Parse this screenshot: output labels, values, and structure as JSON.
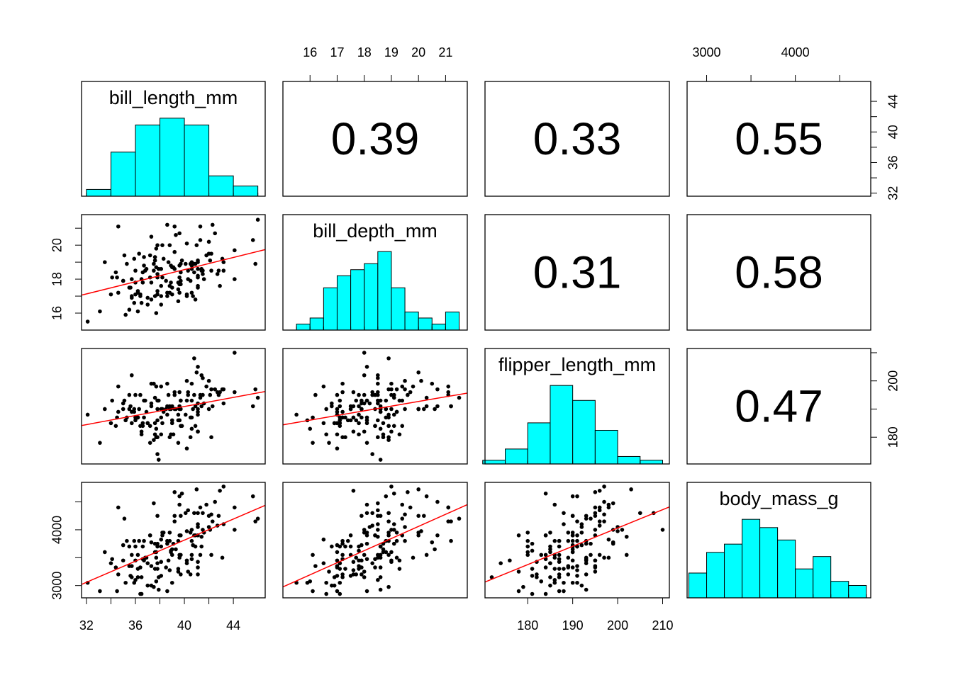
{
  "chart_data": {
    "type": "scatter-matrix",
    "point_color": "#000000",
    "fit_color": "#ff0000",
    "hist_color": "#00ffff",
    "variables": [
      {
        "name": "bill_length_mm",
        "lim": [
          31.6,
          46.6
        ],
        "xticks": [
          32,
          36,
          40,
          44
        ],
        "minor_xticks": [
          34,
          38,
          42
        ],
        "yticks": [
          32,
          36,
          40,
          44
        ],
        "minor_yticks": [
          34,
          38,
          42
        ],
        "bins": [
          32,
          34,
          36,
          38,
          40,
          42,
          44,
          46
        ],
        "counts": [
          2,
          13,
          21,
          23,
          21,
          6,
          3
        ]
      },
      {
        "name": "bill_depth_mm",
        "lim": [
          15.0,
          21.8
        ],
        "xticks": [
          16,
          17,
          18,
          19,
          20,
          21
        ],
        "yticks": [
          16,
          18,
          20
        ],
        "minor_yticks": [
          17,
          19,
          21
        ],
        "bins": [
          15.5,
          16,
          16.5,
          17,
          17.5,
          18,
          18.5,
          19,
          19.5,
          20,
          20.5,
          21,
          21.5
        ],
        "counts": [
          1,
          2,
          7,
          9,
          10,
          11,
          13,
          7,
          3,
          2,
          1,
          3
        ]
      },
      {
        "name": "flipper_length_mm",
        "lim": [
          170.5,
          211.5
        ],
        "xticks": [
          180,
          190,
          200,
          210
        ],
        "yticks": [
          180,
          200
        ],
        "minor_yticks": [
          190,
          210
        ],
        "bins": [
          170,
          175,
          180,
          185,
          190,
          195,
          200,
          205,
          210
        ],
        "counts": [
          1,
          4,
          11,
          21,
          17,
          9,
          2,
          1
        ]
      },
      {
        "name": "body_mass_g",
        "lim": [
          2780,
          4850
        ],
        "xticks": [
          3000,
          4000
        ],
        "minor_xticks": [
          3500,
          4500
        ],
        "yticks": [
          3000,
          4000
        ],
        "minor_yticks": [
          3500,
          4500
        ],
        "bins": [
          2800,
          3000,
          3200,
          3400,
          3600,
          3800,
          4000,
          4200,
          4400,
          4600,
          4800
        ],
        "counts": [
          6,
          11,
          13,
          19,
          17,
          14,
          7,
          10,
          4,
          3
        ]
      }
    ],
    "correlations": [
      0.39,
      0.33,
      0.55,
      0.31,
      0.58,
      0.47
    ],
    "rows": [
      [
        39.1,
        18.7,
        181,
        3750
      ],
      [
        39.5,
        17.4,
        186,
        3800
      ],
      [
        40.3,
        18.0,
        195,
        3250
      ],
      [
        36.7,
        19.3,
        193,
        3450
      ],
      [
        39.3,
        20.6,
        190,
        3650
      ],
      [
        38.9,
        17.8,
        181,
        3625
      ],
      [
        39.2,
        19.6,
        195,
        4675
      ],
      [
        34.1,
        18.1,
        193,
        3475
      ],
      [
        42.0,
        20.2,
        190,
        4250
      ],
      [
        37.8,
        17.1,
        186,
        3300
      ],
      [
        37.8,
        17.3,
        180,
        3700
      ],
      [
        41.1,
        17.6,
        182,
        3200
      ],
      [
        38.6,
        21.2,
        191,
        3800
      ],
      [
        34.6,
        21.1,
        198,
        4400
      ],
      [
        36.6,
        17.8,
        185,
        3700
      ],
      [
        38.7,
        19.0,
        195,
        3450
      ],
      [
        42.5,
        20.7,
        197,
        4500
      ],
      [
        34.4,
        18.4,
        184,
        3325
      ],
      [
        46.0,
        21.5,
        194,
        4200
      ],
      [
        37.8,
        18.3,
        174,
        3400
      ],
      [
        37.7,
        18.7,
        180,
        3600
      ],
      [
        35.9,
        19.2,
        189,
        3800
      ],
      [
        38.2,
        18.1,
        185,
        3950
      ],
      [
        38.8,
        17.2,
        180,
        3800
      ],
      [
        35.3,
        18.9,
        187,
        3800
      ],
      [
        40.6,
        18.6,
        183,
        3550
      ],
      [
        40.5,
        17.9,
        187,
        3200
      ],
      [
        37.9,
        18.6,
        172,
        3150
      ],
      [
        40.5,
        18.9,
        180,
        3950
      ],
      [
        39.5,
        16.7,
        178,
        3250
      ],
      [
        37.2,
        18.1,
        178,
        3900
      ],
      [
        39.5,
        17.8,
        188,
        3300
      ],
      [
        40.9,
        18.9,
        184,
        3900
      ],
      [
        36.4,
        17.0,
        195,
        3325
      ],
      [
        39.2,
        21.1,
        196,
        4150
      ],
      [
        38.8,
        20.0,
        190,
        3950
      ],
      [
        42.2,
        18.5,
        180,
        3550
      ],
      [
        37.6,
        19.3,
        181,
        3300
      ],
      [
        39.8,
        19.1,
        184,
        4650
      ],
      [
        36.5,
        18.0,
        182,
        3150
      ],
      [
        40.8,
        18.4,
        195,
        3900
      ],
      [
        36.0,
        18.5,
        186,
        3100
      ],
      [
        44.1,
        19.7,
        196,
        4400
      ],
      [
        37.0,
        16.9,
        185,
        3000
      ],
      [
        39.6,
        18.8,
        190,
        4600
      ],
      [
        41.1,
        19.0,
        182,
        3425
      ],
      [
        37.5,
        18.9,
        179,
        2975
      ],
      [
        42.3,
        21.2,
        191,
        4150
      ],
      [
        39.6,
        17.7,
        186,
        3500
      ],
      [
        40.1,
        18.9,
        188,
        4300
      ],
      [
        35.0,
        17.9,
        190,
        3450
      ],
      [
        42.0,
        19.5,
        200,
        4050
      ],
      [
        34.5,
        18.1,
        187,
        2900
      ],
      [
        41.4,
        18.6,
        191,
        3700
      ],
      [
        39.0,
        17.5,
        186,
        3550
      ],
      [
        40.6,
        18.8,
        193,
        3800
      ],
      [
        36.5,
        16.6,
        181,
        2850
      ],
      [
        37.6,
        19.1,
        194,
        3750
      ],
      [
        35.7,
        16.9,
        185,
        3150
      ],
      [
        41.3,
        21.1,
        195,
        4400
      ],
      [
        37.6,
        17.0,
        185,
        3600
      ],
      [
        41.1,
        18.2,
        192,
        4050
      ],
      [
        36.4,
        17.1,
        184,
        2850
      ],
      [
        41.6,
        18.0,
        192,
        3950
      ],
      [
        35.5,
        16.2,
        195,
        3350
      ],
      [
        41.1,
        19.1,
        188,
        4100
      ],
      [
        35.9,
        16.6,
        190,
        3050
      ],
      [
        41.8,
        19.4,
        198,
        4450
      ],
      [
        33.5,
        19.0,
        190,
        3600
      ],
      [
        39.7,
        18.4,
        190,
        3900
      ],
      [
        39.6,
        17.2,
        196,
        3550
      ],
      [
        45.8,
        18.9,
        197,
        4150
      ],
      [
        35.5,
        17.5,
        190,
        3700
      ],
      [
        42.8,
        18.5,
        195,
        4250
      ],
      [
        40.9,
        16.8,
        191,
        3700
      ],
      [
        37.2,
        19.4,
        184,
        3900
      ],
      [
        36.2,
        16.1,
        187,
        3550
      ],
      [
        42.1,
        19.1,
        195,
        4000
      ],
      [
        34.6,
        17.2,
        189,
        3200
      ],
      [
        42.9,
        17.6,
        196,
        4700
      ],
      [
        36.7,
        18.8,
        187,
        3800
      ],
      [
        35.1,
        19.4,
        193,
        4200
      ],
      [
        37.3,
        17.8,
        191,
        3350
      ],
      [
        41.3,
        20.3,
        194,
        3550
      ],
      [
        36.3,
        19.5,
        190,
        3800
      ],
      [
        36.9,
        18.6,
        189,
        3500
      ],
      [
        38.3,
        19.2,
        189,
        3950
      ],
      [
        38.9,
        18.8,
        190,
        3600
      ],
      [
        35.7,
        18.0,
        202,
        3550
      ],
      [
        41.1,
        18.1,
        205,
        4300
      ],
      [
        34.0,
        17.1,
        185,
        3400
      ],
      [
        39.6,
        18.1,
        186,
        4450
      ],
      [
        36.2,
        17.3,
        187,
        3300
      ],
      [
        40.8,
        18.9,
        208,
        4300
      ],
      [
        38.1,
        18.6,
        190,
        3700
      ],
      [
        40.3,
        18.5,
        196,
        4350
      ],
      [
        33.1,
        16.1,
        178,
        2900
      ],
      [
        43.2,
        18.5,
        192,
        4100
      ],
      [
        35.0,
        17.9,
        192,
        3725
      ],
      [
        41.0,
        20.0,
        203,
        4725
      ],
      [
        37.7,
        16.0,
        183,
        3075
      ],
      [
        37.8,
        20.0,
        190,
        4250
      ],
      [
        37.9,
        18.6,
        193,
        2925
      ],
      [
        39.7,
        18.9,
        184,
        3550
      ],
      [
        38.6,
        17.2,
        199,
        3750
      ],
      [
        38.2,
        20.0,
        190,
        3900
      ],
      [
        38.1,
        17.0,
        181,
        3175
      ],
      [
        43.2,
        19.0,
        197,
        4775
      ],
      [
        38.1,
        16.5,
        198,
        3825
      ],
      [
        45.6,
        20.3,
        191,
        4600
      ],
      [
        39.7,
        17.7,
        193,
        3200
      ],
      [
        42.2,
        19.5,
        197,
        4275
      ],
      [
        39.6,
        20.7,
        191,
        3900
      ],
      [
        42.7,
        18.3,
        196,
        4075
      ],
      [
        38.6,
        17.0,
        188,
        2900
      ],
      [
        37.3,
        20.5,
        199,
        3775
      ],
      [
        35.7,
        17.0,
        189,
        3350
      ],
      [
        41.1,
        18.6,
        189,
        3325
      ],
      [
        36.2,
        17.2,
        187,
        3150
      ],
      [
        37.7,
        19.8,
        198,
        3500
      ],
      [
        40.2,
        17.0,
        176,
        3450
      ],
      [
        41.4,
        18.5,
        202,
        3875
      ],
      [
        35.2,
        15.9,
        186,
        3050
      ],
      [
        40.6,
        19.0,
        199,
        4000
      ],
      [
        38.8,
        17.6,
        191,
        3275
      ],
      [
        41.5,
        18.3,
        195,
        4300
      ],
      [
        39.0,
        17.1,
        191,
        3050
      ],
      [
        44.1,
        18.0,
        210,
        4000
      ],
      [
        38.5,
        17.9,
        190,
        3325
      ],
      [
        43.1,
        19.2,
        197,
        3500
      ],
      [
        36.8,
        18.5,
        193,
        3500
      ],
      [
        37.5,
        18.5,
        199,
        4475
      ],
      [
        38.1,
        17.6,
        187,
        3425
      ],
      [
        41.1,
        17.5,
        190,
        3900
      ],
      [
        35.6,
        17.5,
        191,
        3175
      ],
      [
        40.2,
        20.1,
        200,
        3975
      ],
      [
        37.0,
        16.5,
        185,
        3400
      ],
      [
        39.7,
        17.9,
        193,
        4250
      ],
      [
        40.2,
        17.1,
        193,
        3400
      ],
      [
        40.6,
        17.2,
        187,
        3475
      ],
      [
        32.1,
        15.5,
        188,
        3050
      ],
      [
        40.7,
        17.0,
        190,
        3725
      ],
      [
        37.3,
        16.8,
        192,
        3000
      ],
      [
        39.0,
        18.7,
        185,
        3650
      ],
      [
        39.2,
        18.6,
        190,
        4250
      ],
      [
        36.6,
        18.4,
        184,
        3475
      ],
      [
        36.0,
        17.8,
        195,
        3450
      ],
      [
        37.8,
        18.1,
        193,
        3750
      ],
      [
        36.0,
        17.1,
        187,
        3700
      ],
      [
        41.5,
        18.5,
        201,
        4000
      ]
    ]
  }
}
